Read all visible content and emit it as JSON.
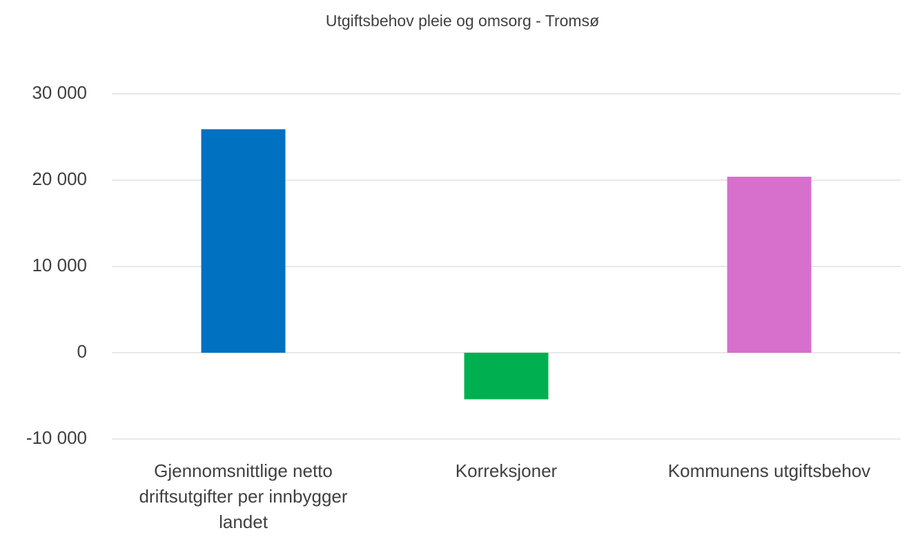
{
  "chart_data": {
    "type": "bar",
    "title": "Utgiftsbehov pleie og omsorg - Tromsø",
    "categories": [
      "Gjennomsnittlige netto driftsutgifter per innbygger landet",
      "Korreksjoner",
      "Kommunens utgiftsbehov"
    ],
    "values": [
      25900,
      -5400,
      20400
    ],
    "colors": [
      "#0070c0",
      "#00b050",
      "#d76fcc"
    ],
    "ylim": [
      -10000,
      30000
    ],
    "yticks": [
      {
        "value": -10000,
        "label": "-10 000"
      },
      0,
      {
        "value": 10000,
        "label": "10 000"
      },
      {
        "value": 20000,
        "label": "20 000"
      },
      {
        "value": 30000,
        "label": "30 000"
      }
    ],
    "grid": true
  }
}
